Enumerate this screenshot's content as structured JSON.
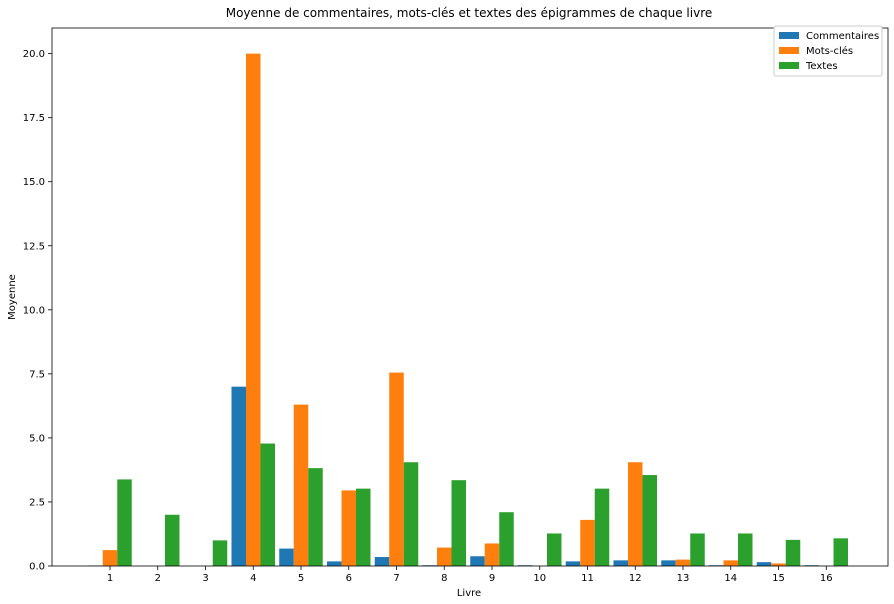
{
  "chart_data": {
    "type": "bar",
    "title": "Moyenne de commentaires, mots-clés et textes des épigrammes de chaque livre",
    "xlabel": "Livre",
    "ylabel": "Moyenne",
    "categories": [
      "1",
      "2",
      "3",
      "4",
      "5",
      "6",
      "7",
      "8",
      "9",
      "10",
      "11",
      "12",
      "13",
      "14",
      "15",
      "16"
    ],
    "series": [
      {
        "name": "Commentaires",
        "color": "#1f77b4",
        "values": [
          0.02,
          0.0,
          0.0,
          7.0,
          0.68,
          0.18,
          0.35,
          0.03,
          0.38,
          0.03,
          0.18,
          0.22,
          0.22,
          0.03,
          0.15,
          0.03
        ]
      },
      {
        "name": "Mots-clés",
        "color": "#ff7f0e",
        "values": [
          0.62,
          0.0,
          0.0,
          20.0,
          6.3,
          2.95,
          7.55,
          0.72,
          0.88,
          0.0,
          1.8,
          4.05,
          0.25,
          0.22,
          0.1,
          0.0
        ]
      },
      {
        "name": "Textes",
        "color": "#2ca02c",
        "values": [
          3.38,
          2.0,
          1.0,
          4.78,
          3.82,
          3.02,
          4.05,
          3.35,
          2.1,
          1.27,
          3.02,
          3.55,
          1.27,
          1.27,
          1.02,
          1.08
        ]
      }
    ],
    "ylim": [
      0,
      21
    ],
    "yticks": [
      "0.0",
      "2.5",
      "5.0",
      "7.5",
      "10.0",
      "12.5",
      "15.0",
      "17.5",
      "20.0"
    ],
    "legend_position": "top-right",
    "grid": false
  }
}
